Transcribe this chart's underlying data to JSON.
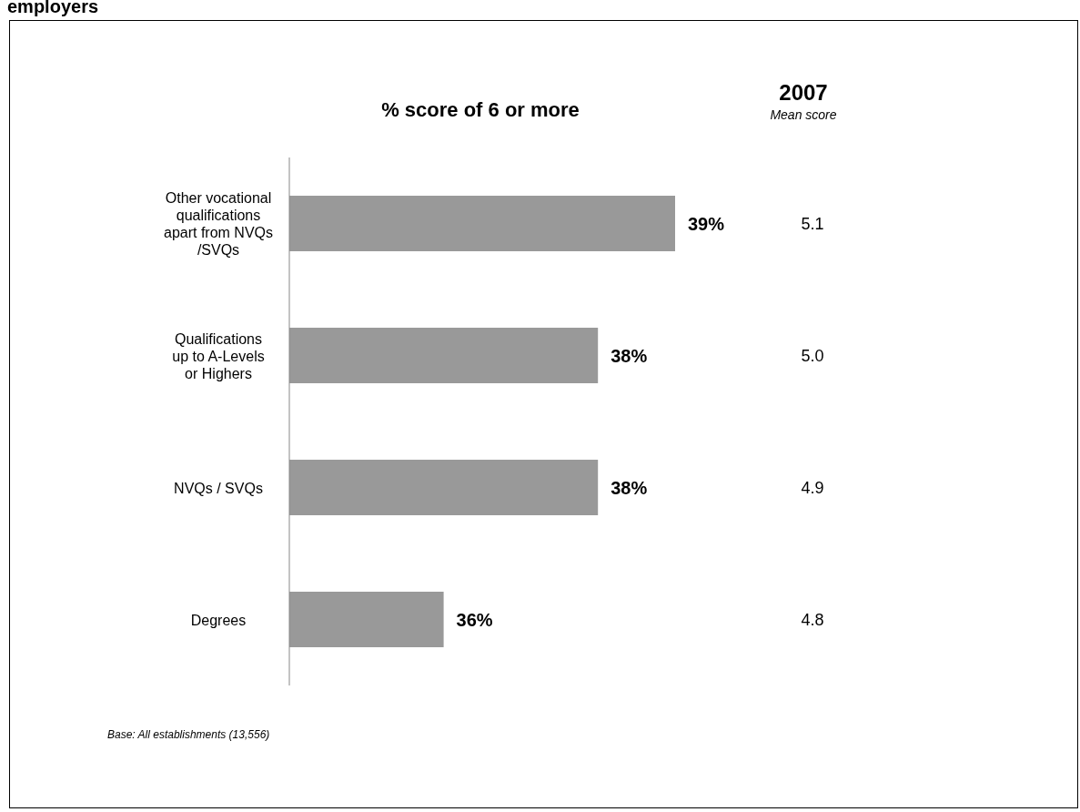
{
  "chart_data": {
    "type": "bar",
    "orientation": "horizontal",
    "title": "employers",
    "subtitle": "% score of 6 or more",
    "categories": [
      "Other vocational qualifications apart from NVQs /SVQs",
      "Qualifications up to A-Levels or Highers",
      "NVQs / SVQs",
      "Degrees"
    ],
    "values": [
      39,
      38,
      38,
      36
    ],
    "color": "#999999",
    "value_labels": [
      "39%",
      "38%",
      "38%",
      "36%"
    ],
    "xlim": [
      34,
      39
    ],
    "tick_labels": "y",
    "grid": false,
    "legend": false,
    "annotations": [
      "2007",
      "Mean score",
      "Base: All establishments (13,556)",
      "5.1",
      "5.0",
      "4.9",
      "4.8"
    ]
  }
}
